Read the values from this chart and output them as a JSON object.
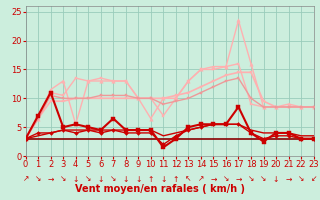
{
  "x": [
    0,
    1,
    2,
    3,
    4,
    5,
    6,
    7,
    8,
    9,
    10,
    11,
    12,
    13,
    14,
    15,
    16,
    17,
    18,
    19,
    20,
    21,
    22,
    23
  ],
  "series": [
    {
      "name": "light_pink_smooth",
      "y": [
        3.0,
        6.5,
        9.5,
        9.5,
        10.0,
        10.0,
        10.0,
        10.0,
        10.0,
        10.0,
        10.0,
        10.0,
        10.5,
        11.0,
        12.0,
        13.0,
        14.0,
        14.5,
        14.5,
        9.5,
        8.5,
        8.5,
        8.5,
        8.5
      ],
      "color": "#ffb0b0",
      "lw": 1.2,
      "marker": "s",
      "ms": 2.0,
      "zorder": 2
    },
    {
      "name": "light_pink_spiky",
      "y": [
        3.0,
        6.5,
        11.5,
        13.0,
        5.5,
        13.0,
        13.0,
        13.0,
        13.0,
        10.0,
        6.5,
        10.0,
        10.0,
        13.0,
        15.0,
        15.5,
        15.5,
        23.5,
        16.0,
        8.5,
        8.5,
        9.0,
        8.5,
        8.5
      ],
      "color": "#ffb0b0",
      "lw": 1.0,
      "marker": "^",
      "ms": 2.5,
      "zorder": 2
    },
    {
      "name": "light_pink_upper",
      "y": [
        3.0,
        7.0,
        11.0,
        10.5,
        13.5,
        13.0,
        13.5,
        13.0,
        13.0,
        10.0,
        10.0,
        7.0,
        10.0,
        13.0,
        15.0,
        15.0,
        15.5,
        16.0,
        9.0,
        8.5,
        8.5,
        8.5,
        8.5,
        8.5
      ],
      "color": "#ffb0b0",
      "lw": 1.0,
      "marker": "s",
      "ms": 2.0,
      "zorder": 2
    },
    {
      "name": "medium_pink",
      "y": [
        3.0,
        6.5,
        10.5,
        10.0,
        10.0,
        10.0,
        10.5,
        10.5,
        10.5,
        10.0,
        10.0,
        9.0,
        9.5,
        10.0,
        11.0,
        12.0,
        13.0,
        13.5,
        10.0,
        8.5,
        8.5,
        8.5,
        8.5,
        8.5
      ],
      "color": "#ee9999",
      "lw": 1.0,
      "marker": "s",
      "ms": 2.0,
      "zorder": 3
    },
    {
      "name": "dark_red_main",
      "y": [
        3.0,
        7.0,
        11.0,
        5.0,
        5.5,
        5.0,
        4.5,
        6.5,
        4.5,
        4.5,
        4.5,
        1.5,
        3.0,
        5.0,
        5.5,
        5.5,
        5.5,
        8.5,
        4.0,
        2.5,
        4.0,
        4.0,
        3.0,
        3.0
      ],
      "color": "#cc0000",
      "lw": 1.5,
      "marker": "s",
      "ms": 2.5,
      "zorder": 6
    },
    {
      "name": "dark_red_smooth",
      "y": [
        3.0,
        3.5,
        4.0,
        4.5,
        4.5,
        4.5,
        4.5,
        4.5,
        4.5,
        4.5,
        4.5,
        3.5,
        4.0,
        4.5,
        5.0,
        5.5,
        5.5,
        5.5,
        4.5,
        4.0,
        4.0,
        4.0,
        3.5,
        3.5
      ],
      "color": "#cc0000",
      "lw": 1.0,
      "marker": null,
      "ms": 0,
      "zorder": 5
    },
    {
      "name": "dark_red_flat",
      "y": [
        3.0,
        3.0,
        3.0,
        3.0,
        3.0,
        3.0,
        3.0,
        3.0,
        3.0,
        3.0,
        3.0,
        3.0,
        3.0,
        3.0,
        3.0,
        3.0,
        3.0,
        3.0,
        3.0,
        3.0,
        3.0,
        3.0,
        3.0,
        3.0
      ],
      "color": "#880000",
      "lw": 1.2,
      "marker": null,
      "ms": 0,
      "zorder": 4
    },
    {
      "name": "dark_red_lower",
      "y": [
        3.0,
        4.0,
        4.0,
        4.5,
        4.0,
        4.5,
        4.0,
        4.5,
        4.0,
        4.0,
        4.0,
        2.0,
        3.5,
        4.5,
        5.0,
        5.5,
        5.5,
        5.5,
        4.0,
        3.0,
        3.5,
        3.5,
        3.0,
        3.0
      ],
      "color": "#cc0000",
      "lw": 1.0,
      "marker": "D",
      "ms": 2.0,
      "zorder": 5
    }
  ],
  "wind_arrows": [
    "↗",
    "↘",
    "→",
    "↘",
    "↓",
    "↘",
    "↓",
    "↘",
    "↓",
    "↓",
    "↑",
    "↓",
    "↑",
    "↖",
    "↗",
    "→",
    "↘",
    "→",
    "↘",
    "↘",
    "↓",
    "→",
    "↘",
    "↙"
  ],
  "xlabel": "Vent moyen/en rafales ( km/h )",
  "xlim": [
    0,
    23
  ],
  "ylim": [
    0,
    26
  ],
  "yticks": [
    0,
    5,
    10,
    15,
    20,
    25
  ],
  "xticks": [
    0,
    1,
    2,
    3,
    4,
    5,
    6,
    7,
    8,
    9,
    10,
    11,
    12,
    13,
    14,
    15,
    16,
    17,
    18,
    19,
    20,
    21,
    22,
    23
  ],
  "bg_color": "#cceedd",
  "grid_color": "#99ccbb",
  "xlabel_color": "#cc0000",
  "xlabel_fontsize": 7,
  "tick_color": "#cc0000",
  "tick_fontsize": 6,
  "arrow_color": "#cc0000",
  "arrow_fontsize": 5.5
}
